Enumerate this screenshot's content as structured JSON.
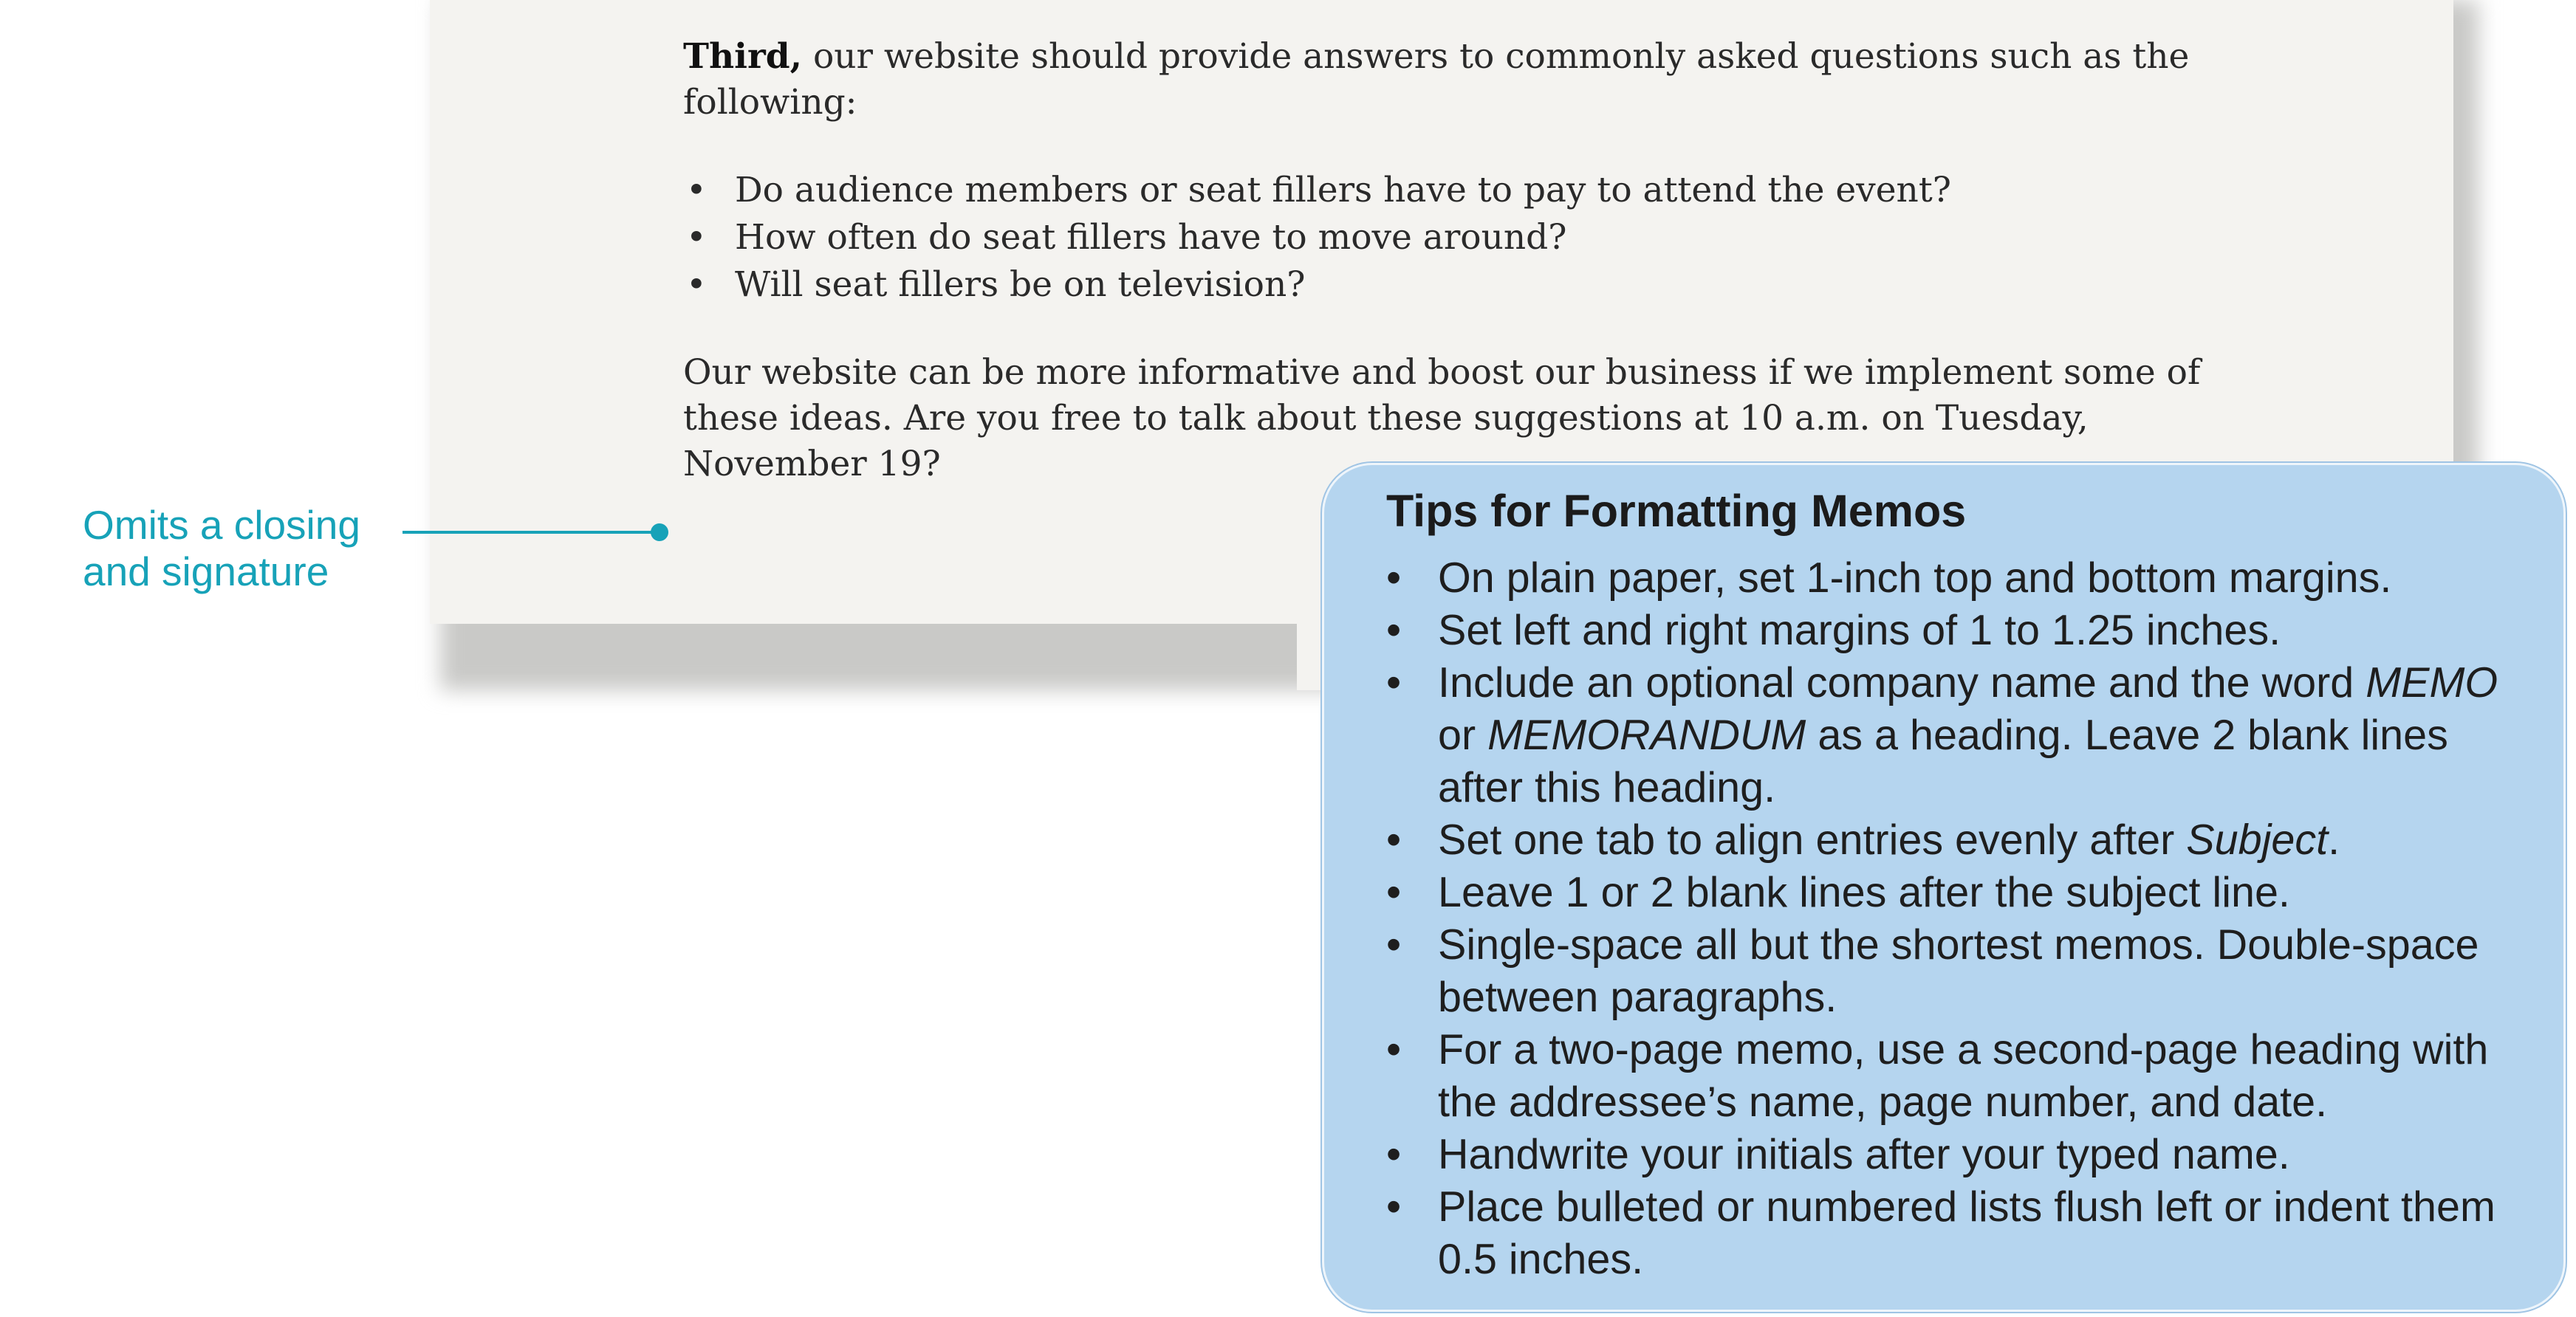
{
  "memo": {
    "third_lead": "Third,",
    "third_rest": " our website should provide answers to commonly asked questions such as the following:",
    "bullet_glyph": "•",
    "questions": [
      "Do audience members or seat fillers have to pay to attend the event?",
      "How often do seat fillers have to move around?",
      "Will seat fillers be on television?"
    ],
    "closing_paragraph": "Our website can be more informative and boost our business if we implement some of these ideas. Are you free to talk about these suggestions at 10 a.m. on Tuesday, November 19?"
  },
  "callout": {
    "line1": "Omits a closing",
    "line2": "and signature",
    "color": "#17a2b8"
  },
  "tips": {
    "title": "Tips for Formatting Memos",
    "background_color": "#b5d5ef",
    "items": [
      {
        "text": "On plain paper, set 1-inch top and bottom margins."
      },
      {
        "text": "Set left and right margins of 1 to 1.25 inches."
      },
      {
        "text_a": "Include an optional company name and the word ",
        "em_a": "MEMO",
        "text_b": " or ",
        "em_b": "MEMORANDUM",
        "text_c": " as a heading. Leave 2 blank lines after this heading."
      },
      {
        "text_a": "Set one tab to align entries evenly after ",
        "em_a": "Subject",
        "text_b": "."
      },
      {
        "text": "Leave 1 or 2 blank lines after the subject line."
      },
      {
        "text": "Single-space all but the shortest memos. Double-space between paragraphs."
      },
      {
        "text": "For a two-page memo, use a second-page heading with the addressee’s name, page number, and date."
      },
      {
        "text": "Handwrite your initials after your typed name."
      },
      {
        "text": "Place bulleted or numbered lists flush left or indent them 0.5 inches."
      }
    ]
  }
}
